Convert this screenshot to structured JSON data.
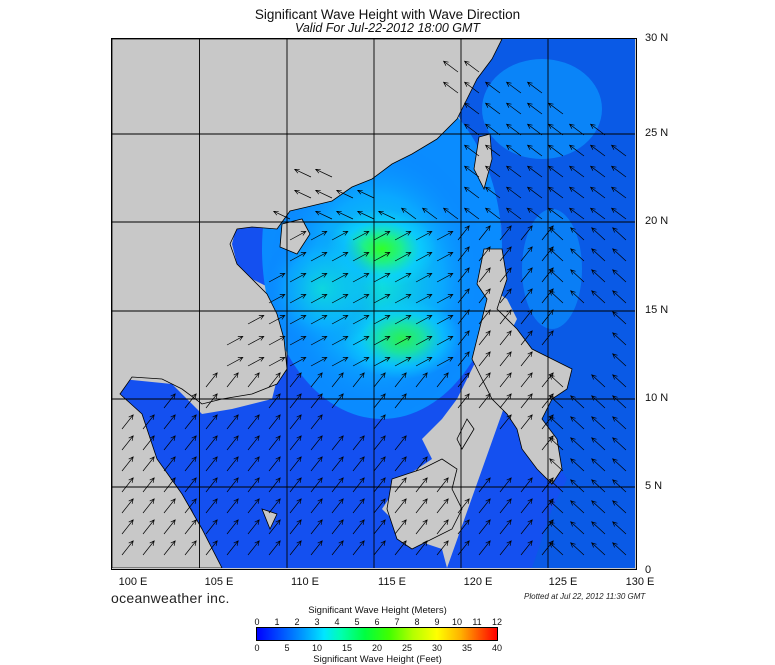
{
  "title": "Significant Wave Height with Wave Direction",
  "subtitle": "Valid For Jul-22-2012 18:00 GMT",
  "lat_labels": [
    "30 N",
    "25 N",
    "20 N",
    "15 N",
    "10 N",
    "5 N",
    "0"
  ],
  "lon_labels": [
    "100 E",
    "105 E",
    "110 E",
    "115 E",
    "120 E",
    "125 E",
    "130 E"
  ],
  "brand": "oceanweather inc.",
  "plotted": "Plotted at Jul 22, 2012 11:30 GMT",
  "legend": {
    "meters_title": "Significant Wave Height (Meters)",
    "meters_ticks": [
      "0",
      "1",
      "2",
      "3",
      "4",
      "5",
      "6",
      "7",
      "8",
      "9",
      "10",
      "11",
      "12"
    ],
    "feet_ticks": [
      "0",
      "5",
      "10",
      "15",
      "20",
      "25",
      "30",
      "35",
      "40"
    ],
    "feet_title": "Significant Wave Height (Feet)"
  },
  "colors": {
    "land": "#c8c8c8",
    "sea_low": "#0a32e6",
    "sea_mid": "#0aa0ff",
    "sea_high": "#1ee6a0",
    "peak": "#32ff28"
  },
  "map_extent": {
    "lon": [
      100,
      130
    ],
    "lat": [
      0,
      30
    ]
  }
}
